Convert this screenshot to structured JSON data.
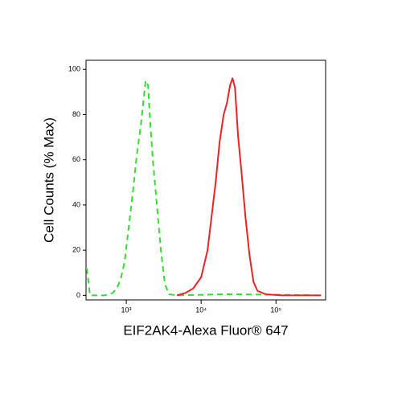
{
  "chart_data": {
    "type": "line",
    "xlabel": "EIF2AK4-Alexa Fluor® 647",
    "ylabel": "Cell Counts (% Max)",
    "xscale": "log",
    "xlim": [
      290,
      460000
    ],
    "ylim": [
      -2,
      104
    ],
    "xticks": [
      {
        "value": 1000,
        "label": "10³"
      },
      {
        "value": 10000,
        "label": "10⁴"
      },
      {
        "value": 100000,
        "label": "10⁵"
      }
    ],
    "yticks": [
      0,
      20,
      40,
      60,
      80,
      100
    ],
    "series": [
      {
        "color": "#33dd33",
        "line_style": "dashed",
        "x": [
          297,
          328,
          513,
          656,
          743,
          841,
          951,
          1077,
          1219,
          1380,
          1563,
          1683,
          1813,
          1952,
          2102,
          2263,
          2563,
          2899,
          3282,
          3715,
          4757,
          20000,
          100000,
          400000
        ],
        "values": [
          12,
          0,
          0,
          1,
          3,
          7,
          15,
          30,
          45,
          62,
          75,
          85,
          95,
          93,
          75,
          60,
          40,
          20,
          5,
          0.5,
          0,
          0.5,
          0.3,
          0
        ]
      },
      {
        "color": "#ee2222",
        "line_style": "solid",
        "x": [
          4757,
          6095,
          7800,
          10000,
          12190,
          13800,
          15630,
          17670,
          20000,
          22080,
          24380,
          26250,
          28300,
          31230,
          34500,
          39000,
          44200,
          50000,
          56600,
          72500,
          119000,
          400000
        ],
        "values": [
          0,
          1,
          3,
          8,
          20,
          35,
          50,
          68,
          80,
          85,
          93,
          96,
          92,
          70,
          55,
          35,
          18,
          6,
          2,
          0.5,
          0,
          0
        ]
      }
    ]
  }
}
